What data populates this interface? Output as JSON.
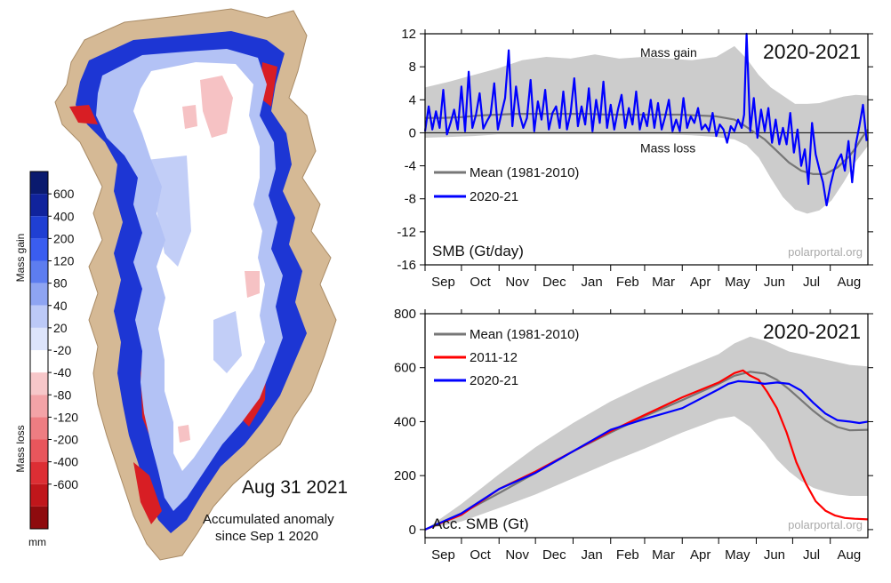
{
  "map": {
    "date": "Aug 31 2021",
    "caption_line1": "Accumulated anomaly",
    "caption_line2": "since Sep 1 2020",
    "colorbar": {
      "unit": "mm",
      "gain_label": "Mass gain",
      "loss_label": "Mass loss",
      "labels": [
        "600",
        "400",
        "200",
        "120",
        "80",
        "40",
        "20",
        "-20",
        "-40",
        "-80",
        "-120",
        "-200",
        "-400",
        "-600"
      ],
      "colors": [
        "#0a1a6e",
        "#10239c",
        "#1f3fd3",
        "#3a5df0",
        "#5d7df0",
        "#8ea4f2",
        "#bcc9f7",
        "#dde4fb",
        "#ffffff",
        "#f7c7c9",
        "#f3a3a7",
        "#ee7d82",
        "#e8565c",
        "#dd2e34",
        "#c0161b",
        "#8e0b0e"
      ]
    },
    "colors": {
      "land": "#d5b995",
      "ice": "#ffffff",
      "gain": "#1d36d4",
      "loss": "#d81e24",
      "light_gain": "#b3c2f5",
      "light_loss": "#f6c2c4"
    }
  },
  "chart_data": [
    {
      "type": "line",
      "title": "2020-2021",
      "ylabel": "SMB (Gt/day)",
      "watermark": "polarportal.org",
      "annotations": [
        "Mass gain",
        "Mass loss"
      ],
      "months": [
        "Sep",
        "Oct",
        "Nov",
        "Dec",
        "Jan",
        "Feb",
        "Mar",
        "Apr",
        "May",
        "Jun",
        "Jul",
        "Aug"
      ],
      "month_days": [
        30,
        31,
        30,
        31,
        31,
        28,
        31,
        30,
        31,
        30,
        31,
        31
      ],
      "ylim": [
        -16,
        12
      ],
      "yticks": [
        12,
        8,
        4,
        0,
        -4,
        -8,
        -12,
        -16
      ],
      "band_color": "#cccccc",
      "zero_line": true,
      "series": [
        {
          "name": "Mean (1981-2010)",
          "color": "#777777",
          "days": [
            0,
            15,
            30,
            45,
            60,
            75,
            90,
            105,
            120,
            135,
            150,
            165,
            180,
            195,
            210,
            225,
            240,
            255,
            262,
            270,
            280,
            290,
            300,
            310,
            320,
            330,
            340,
            350,
            355,
            360,
            365
          ],
          "values": [
            1.8,
            1.8,
            1.9,
            2.1,
            2.2,
            2.3,
            2.3,
            2.3,
            2.3,
            2.3,
            2.2,
            2.2,
            2.2,
            2.2,
            2.2,
            2.1,
            2.0,
            1.6,
            1.0,
            0.2,
            -0.8,
            -2.2,
            -3.6,
            -4.6,
            -5.0,
            -5.0,
            -4.2,
            -2.8,
            -1.8,
            -0.6,
            0.4
          ]
        },
        {
          "name": "2020-21",
          "color": "#0000ff",
          "days": [
            0,
            3,
            6,
            9,
            12,
            15,
            18,
            21,
            24,
            27,
            30,
            33,
            36,
            39,
            42,
            45,
            48,
            51,
            54,
            57,
            60,
            63,
            66,
            69,
            72,
            75,
            78,
            81,
            84,
            87,
            90,
            93,
            96,
            99,
            102,
            105,
            108,
            111,
            114,
            117,
            120,
            123,
            126,
            129,
            132,
            135,
            138,
            141,
            144,
            147,
            150,
            153,
            156,
            159,
            162,
            165,
            168,
            171,
            174,
            177,
            180,
            183,
            186,
            189,
            192,
            195,
            198,
            201,
            204,
            207,
            210,
            213,
            216,
            219,
            222,
            225,
            228,
            231,
            234,
            237,
            240,
            243,
            246,
            249,
            252,
            255,
            258,
            261,
            263,
            265,
            268,
            271,
            274,
            277,
            280,
            283,
            286,
            289,
            292,
            295,
            298,
            301,
            304,
            307,
            310,
            313,
            316,
            319,
            322,
            325,
            328,
            331,
            334,
            337,
            340,
            343,
            346,
            349,
            352,
            355,
            358,
            361,
            364
          ],
          "values": [
            0.2,
            3.2,
            0.4,
            2.6,
            0.6,
            5.2,
            -0.2,
            1.2,
            2.8,
            0.4,
            5.6,
            0.2,
            7.4,
            0.6,
            2.2,
            4.8,
            0.5,
            1.4,
            2.2,
            6.0,
            0.4,
            2.4,
            4.2,
            10.0,
            0.8,
            5.6,
            2.2,
            0.6,
            1.8,
            6.4,
            0.2,
            3.8,
            1.6,
            5.2,
            0.4,
            2.4,
            3.2,
            0.6,
            5.0,
            0.4,
            2.4,
            6.6,
            0.8,
            3.2,
            1.0,
            5.4,
            0.2,
            4.0,
            1.2,
            6.2,
            0.6,
            3.4,
            0.4,
            2.8,
            4.6,
            0.6,
            3.0,
            1.0,
            5.0,
            0.4,
            2.4,
            0.8,
            4.0,
            0.6,
            3.6,
            0.4,
            2.0,
            4.0,
            0.2,
            1.6,
            0.2,
            4.2,
            0.6,
            2.0,
            1.2,
            3.0,
            0.4,
            1.0,
            0.2,
            2.4,
            -0.4,
            1.0,
            0.4,
            -1.2,
            0.8,
            0.2,
            1.6,
            0.6,
            2.2,
            12.0,
            0.2,
            4.2,
            -0.6,
            2.8,
            0.2,
            3.0,
            -1.2,
            1.6,
            -1.4,
            0.6,
            -1.4,
            2.4,
            -2.4,
            0.4,
            -4.0,
            -2.0,
            -6.2,
            1.2,
            -2.6,
            -4.4,
            -6.0,
            -8.8,
            -6.4,
            -4.6,
            -3.4,
            -2.6,
            -4.6,
            -1.0,
            -6.0,
            -1.4,
            0.8,
            3.4,
            -1.0
          ]
        }
      ],
      "band": {
        "days": [
          0,
          20,
          40,
          60,
          80,
          100,
          120,
          140,
          160,
          180,
          200,
          220,
          240,
          255,
          265,
          275,
          285,
          295,
          305,
          315,
          325,
          335,
          345,
          355,
          365
        ],
        "lower": [
          -0.6,
          -0.5,
          -0.4,
          -0.2,
          -0.2,
          -0.2,
          -0.2,
          -0.2,
          -0.2,
          -0.2,
          -0.2,
          -0.3,
          -0.5,
          -0.8,
          -1.5,
          -3.0,
          -5.5,
          -7.8,
          -9.3,
          -9.8,
          -9.4,
          -8.2,
          -6.0,
          -3.5,
          -1.6
        ],
        "upper": [
          5.5,
          6.2,
          7.0,
          7.8,
          8.8,
          9.2,
          9.0,
          9.5,
          9.0,
          9.2,
          9.0,
          8.8,
          9.2,
          10.5,
          9.0,
          7.0,
          5.5,
          4.5,
          3.5,
          3.5,
          3.6,
          4.0,
          4.4,
          4.6,
          4.5
        ]
      }
    },
    {
      "type": "line",
      "title": "2020-2021",
      "ylabel": "Acc. SMB (Gt)",
      "watermark": "polarportal.org",
      "months": [
        "Sep",
        "Oct",
        "Nov",
        "Dec",
        "Jan",
        "Feb",
        "Mar",
        "Apr",
        "May",
        "Jun",
        "Jul",
        "Aug"
      ],
      "month_days": [
        30,
        31,
        30,
        31,
        31,
        28,
        31,
        30,
        31,
        30,
        31,
        31
      ],
      "ylim": [
        -30,
        800
      ],
      "yticks": [
        800,
        600,
        400,
        200,
        0
      ],
      "band_color": "#cccccc",
      "series": [
        {
          "name": "Mean (1981-2010)",
          "color": "#777777",
          "days": [
            0,
            30,
            61,
            91,
            122,
            153,
            181,
            212,
            242,
            255,
            268,
            280,
            290,
            300,
            310,
            320,
            330,
            340,
            350,
            365
          ],
          "values": [
            0,
            60,
            135,
            210,
            290,
            360,
            420,
            480,
            540,
            570,
            585,
            578,
            555,
            520,
            480,
            440,
            405,
            380,
            368,
            370
          ]
        },
        {
          "name": "2011-12",
          "color": "#ff0000",
          "days": [
            0,
            30,
            61,
            91,
            122,
            153,
            181,
            212,
            242,
            255,
            262,
            268,
            275,
            282,
            290,
            298,
            306,
            314,
            322,
            330,
            338,
            346,
            354,
            365
          ],
          "values": [
            0,
            55,
            150,
            215,
            290,
            365,
            425,
            490,
            545,
            580,
            590,
            570,
            555,
            510,
            450,
            360,
            250,
            170,
            105,
            70,
            52,
            43,
            40,
            38
          ]
        },
        {
          "name": "2020-21",
          "color": "#0000ff",
          "days": [
            0,
            30,
            61,
            91,
            122,
            153,
            181,
            212,
            242,
            250,
            258,
            265,
            272,
            280,
            290,
            300,
            310,
            320,
            330,
            340,
            350,
            358,
            365
          ],
          "values": [
            0,
            60,
            150,
            210,
            290,
            370,
            410,
            450,
            520,
            540,
            550,
            548,
            545,
            540,
            545,
            540,
            515,
            470,
            430,
            405,
            400,
            395,
            400
          ]
        }
      ],
      "band": {
        "days": [
          0,
          30,
          61,
          91,
          122,
          153,
          181,
          212,
          242,
          255,
          268,
          280,
          290,
          300,
          310,
          320,
          330,
          340,
          350,
          365
        ],
        "lower": [
          0,
          30,
          80,
          130,
          190,
          250,
          300,
          360,
          410,
          420,
          380,
          320,
          260,
          215,
          180,
          155,
          140,
          130,
          125,
          125
        ],
        "upper": [
          0,
          95,
          205,
          305,
          395,
          475,
          535,
          595,
          650,
          690,
          715,
          700,
          680,
          660,
          650,
          640,
          630,
          620,
          610,
          605
        ]
      }
    }
  ]
}
